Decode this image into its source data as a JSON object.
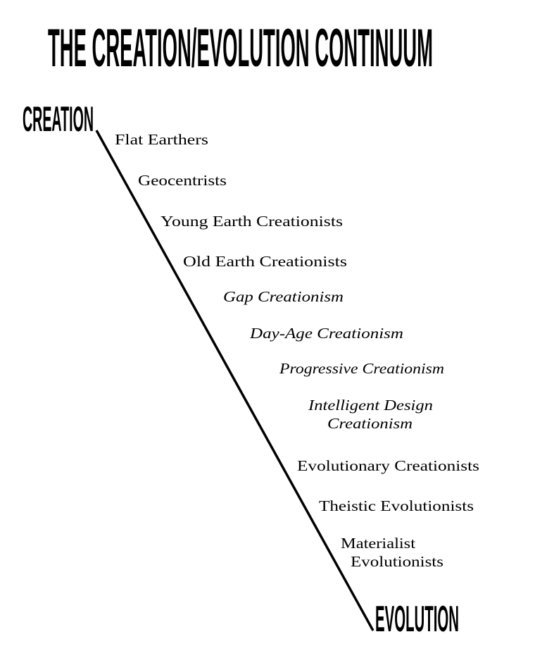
{
  "title": "THE CREATION/EVOLUTION CONTINUUM",
  "endpoints": {
    "start": "CREATION",
    "end": "EVOLUTION"
  },
  "positions": [
    {
      "lines": [
        "Flat Earthers"
      ],
      "italic": false
    },
    {
      "lines": [
        "Geocentrists"
      ],
      "italic": false
    },
    {
      "lines": [
        "Young Earth Creationists"
      ],
      "italic": false
    },
    {
      "lines": [
        "Old Earth Creationists"
      ],
      "italic": false
    },
    {
      "lines": [
        "Gap Creationism"
      ],
      "italic": true
    },
    {
      "lines": [
        "Day-Age Creationism"
      ],
      "italic": true
    },
    {
      "lines": [
        "Progressive Creationism"
      ],
      "italic": true
    },
    {
      "lines": [
        "Intelligent Design",
        "Creationism"
      ],
      "italic": true
    },
    {
      "lines": [
        "Evolutionary Creationists"
      ],
      "italic": false
    },
    {
      "lines": [
        "Theistic Evolutionists"
      ],
      "italic": false
    },
    {
      "lines": [
        "Materialist",
        "Evolutionists"
      ],
      "italic": false
    }
  ]
}
